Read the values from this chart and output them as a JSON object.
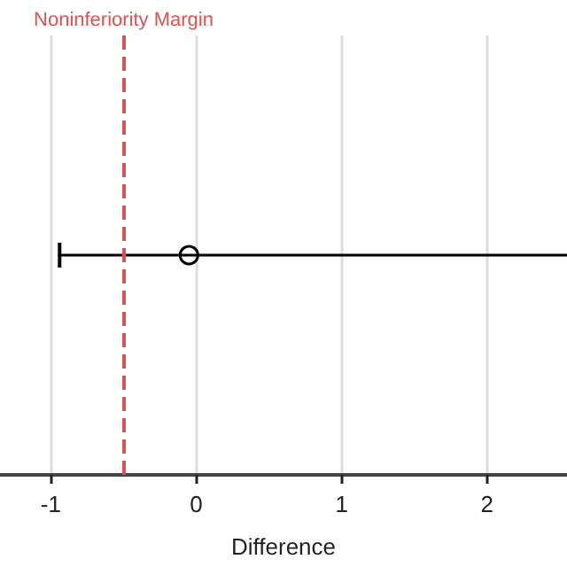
{
  "chart_data": {
    "type": "scatter",
    "xlabel": "Difference",
    "orientation": "horizontal",
    "categories": [
      null
    ],
    "values": [
      -0.05
    ],
    "errors": [
      [
        -0.94,
        2.55
      ]
    ],
    "color": "#000000",
    "xlim": [
      -1.35,
      2.55
    ],
    "xticks": [
      -1,
      0,
      1,
      2
    ],
    "ref_lines": [
      {
        "axis": "x",
        "value": -0.5,
        "label": "Noninferiority Margin",
        "color": "#d9534f",
        "line_style": "dashed"
      }
    ],
    "grid": "x",
    "marker": "circle",
    "tick_labels": "x"
  }
}
